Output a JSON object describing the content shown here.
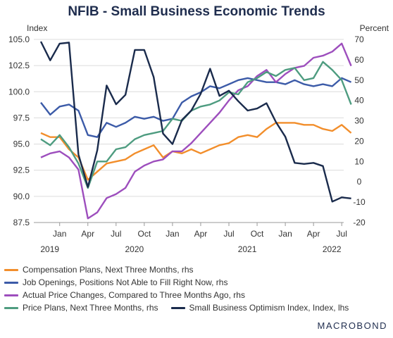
{
  "chart_data": {
    "type": "line",
    "title": "NFIB - Small Business Economic Trends",
    "ylabel_left": "Index",
    "ylabel_right": "Percent",
    "ylim_left": [
      87.5,
      105.0
    ],
    "ylim_right": [
      -20,
      70
    ],
    "yticks_left": [
      "105.0",
      "102.5",
      "100.0",
      "97.5",
      "95.0",
      "92.5",
      "90.0",
      "87.5"
    ],
    "yticks_right": [
      "70",
      "60",
      "50",
      "40",
      "30",
      "20",
      "10",
      "0",
      "-10",
      "-20"
    ],
    "x": [
      "2018-11",
      "2018-12",
      "2019-01",
      "2019-02",
      "2019-03",
      "2019-04",
      "2019-05",
      "2019-06",
      "2019-07",
      "2019-08",
      "2019-09",
      "2019-10",
      "2019-11",
      "2019-12",
      "2020-01",
      "2020-02",
      "2020-03",
      "2020-04",
      "2020-05",
      "2020-06",
      "2020-07",
      "2020-08",
      "2020-09",
      "2020-10",
      "2020-11",
      "2020-12",
      "2021-01",
      "2021-02",
      "2021-03",
      "2021-04",
      "2021-05",
      "2021-06",
      "2021-07",
      "2021-08"
    ],
    "x_tick_labels": [
      {
        "month": "Jan",
        "year": "2019"
      },
      {
        "month": "Apr",
        "year": ""
      },
      {
        "month": "Jul",
        "year": ""
      },
      {
        "month": "Oct",
        "year": "2020"
      },
      {
        "month": "Jan",
        "year": ""
      },
      {
        "month": "Apr",
        "year": ""
      },
      {
        "month": "Jul",
        "year": ""
      },
      {
        "month": "Oct",
        "year": "2021"
      },
      {
        "month": "Jan",
        "year": ""
      },
      {
        "month": "Apr",
        "year": ""
      },
      {
        "month": "Jul",
        "year": "2022"
      }
    ],
    "series": [
      {
        "name": "Compensation Plans, Next Three Months, rhs",
        "axis": "right",
        "color": "#f28e2b",
        "values": [
          24,
          22,
          22,
          16,
          12,
          1,
          5,
          9,
          10,
          11,
          14,
          16,
          18,
          12,
          15,
          14,
          16,
          14,
          16,
          18,
          19,
          22,
          23,
          22,
          26,
          29,
          29,
          29,
          28,
          28,
          26,
          25,
          28,
          24
        ]
      },
      {
        "name": "Job Openings, Positions Not Able to Fill Right Now, rhs",
        "axis": "right",
        "color": "#3c5ba8",
        "values": [
          39,
          33,
          37,
          38,
          35,
          23,
          22,
          29,
          27,
          29,
          32,
          31,
          32,
          30,
          31,
          39,
          42,
          44,
          47,
          46,
          48,
          50,
          51,
          50,
          49,
          49,
          48,
          50,
          48,
          47,
          48,
          47,
          51,
          49
        ]
      },
      {
        "name": "Actual Price Changes, Compared to Three Months Ago, rhs",
        "axis": "right",
        "color": "#9d4ebd",
        "values": [
          12,
          14,
          15,
          12,
          6,
          -18,
          -15,
          -8,
          -6,
          -3,
          5,
          8,
          10,
          11,
          15,
          15,
          19,
          24,
          29,
          34,
          40,
          45,
          47,
          52,
          55,
          49,
          53,
          56,
          57,
          61,
          62,
          64,
          68,
          57
        ]
      },
      {
        "name": "Price Plans, Next Three Months, rhs",
        "axis": "right",
        "color": "#4e9c80",
        "values": [
          21,
          18,
          23,
          17,
          9,
          -3,
          10,
          10,
          16,
          17,
          21,
          23,
          24,
          25,
          31,
          30,
          35,
          37,
          38,
          40,
          44,
          43,
          49,
          51,
          54,
          52,
          55,
          56,
          50,
          51,
          59,
          55,
          50,
          38
        ]
      },
      {
        "name": "Small Business Optimism Index, Index, lhs",
        "axis": "left",
        "color": "#1a2b4c",
        "values": [
          104.8,
          103.0,
          104.6,
          104.7,
          94.0,
          90.9,
          94.4,
          100.6,
          98.8,
          99.7,
          104.0,
          104.0,
          101.4,
          96.0,
          95.0,
          97.3,
          98.2,
          99.8,
          102.2,
          99.6,
          100.1,
          99.1,
          98.2,
          98.4,
          98.9,
          97.1,
          95.7,
          93.2,
          93.1,
          93.2,
          92.9,
          89.5,
          89.9,
          89.8
        ]
      }
    ],
    "legend_placement": "bottom",
    "grid": true,
    "source_brand": "MACROBOND"
  }
}
